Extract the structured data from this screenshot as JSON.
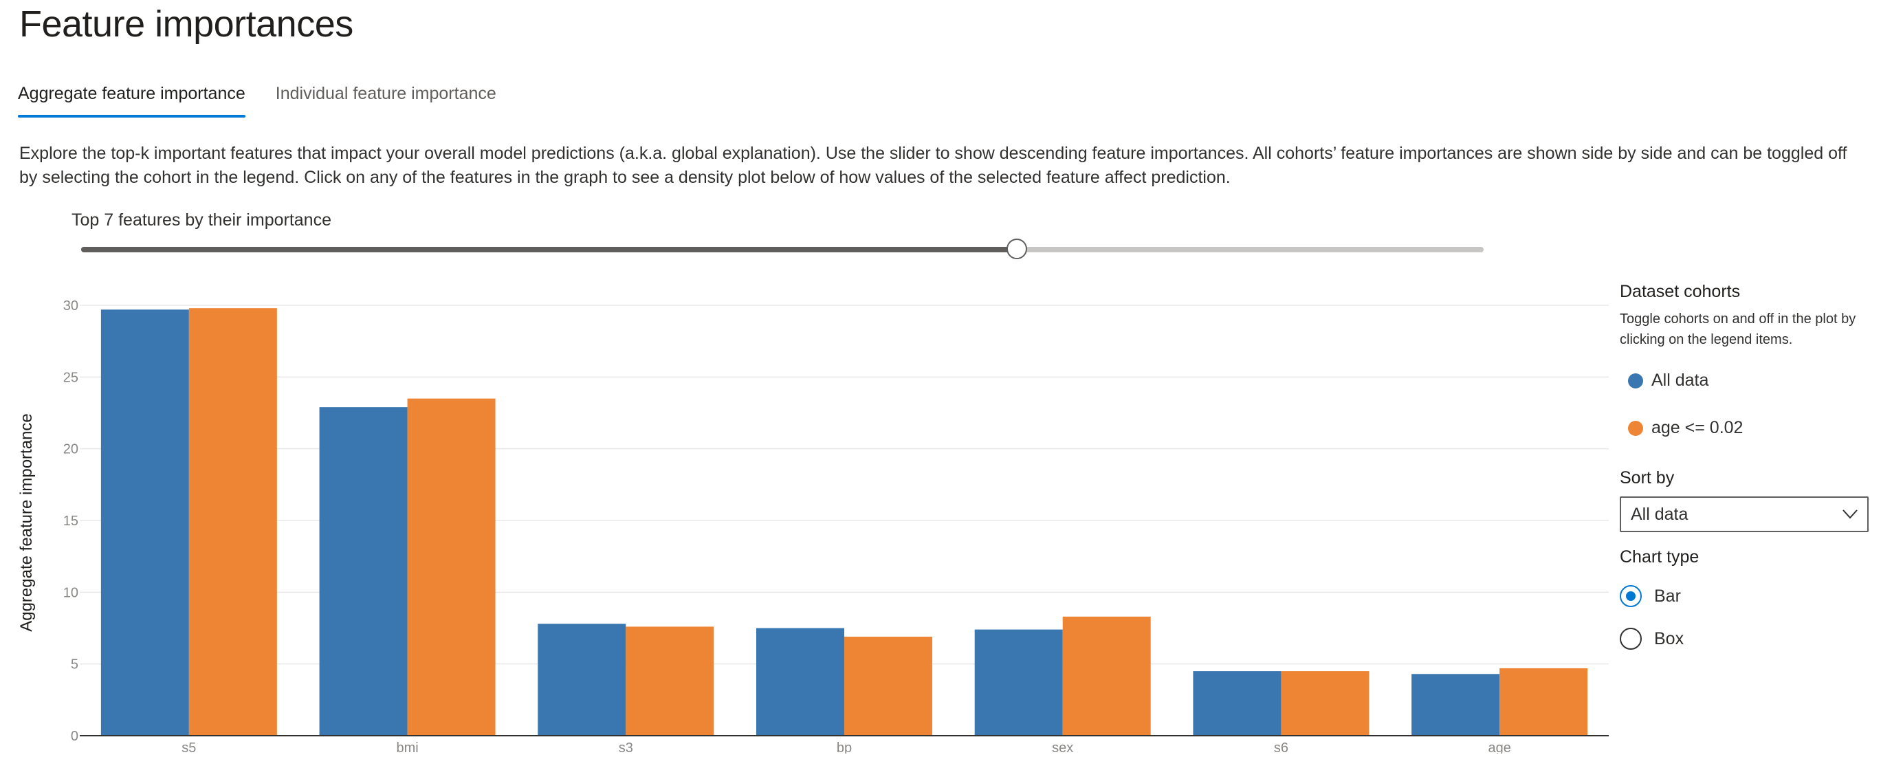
{
  "page": {
    "title": "Feature importances",
    "tabs": [
      {
        "label": "Aggregate feature importance",
        "active": true
      },
      {
        "label": "Individual feature importance",
        "active": false
      }
    ],
    "description": "Explore the top-k important features that impact your overall model predictions (a.k.a. global explanation). Use the slider to show descending feature importances. All cohorts’ feature importances are shown side by side and can be toggled off by selecting the cohort in the legend. Click on any of the features in the graph to see a density plot below of how values of the selected feature affect prediction."
  },
  "slider": {
    "label": "Top 7 features by their importance",
    "value": 7,
    "fraction": 0.667
  },
  "side_panel": {
    "cohorts_title": "Dataset cohorts",
    "cohorts_hint": "Toggle cohorts on and off in the plot by clicking on the legend items.",
    "legend": [
      {
        "label": "All data",
        "color": "#3a77b0"
      },
      {
        "label": "age <= 0.02",
        "color": "#ee8535"
      }
    ],
    "sort_by_label": "Sort by",
    "sort_by_value": "All data",
    "chart_type_label": "Chart type",
    "chart_type_options": [
      {
        "label": "Bar",
        "checked": true
      },
      {
        "label": "Box",
        "checked": false
      }
    ],
    "chevron_icon": "chevron-down-icon"
  },
  "chart_data": {
    "type": "bar",
    "categories": [
      "s5",
      "bmi",
      "s3",
      "bp",
      "sex",
      "s6",
      "age"
    ],
    "series": [
      {
        "name": "All data",
        "color": "#3a77b0",
        "values": [
          29.7,
          22.9,
          7.8,
          7.5,
          7.4,
          4.5,
          4.3
        ]
      },
      {
        "name": "age <= 0.02",
        "color": "#ee8535",
        "values": [
          29.8,
          23.5,
          7.6,
          6.9,
          8.3,
          4.5,
          4.7
        ]
      }
    ],
    "ylabel": "Aggregate feature importance",
    "xlabel": "",
    "ylim": [
      0,
      30
    ],
    "yticks": [
      0,
      5,
      10,
      15,
      20,
      25,
      30
    ],
    "grid": true
  }
}
